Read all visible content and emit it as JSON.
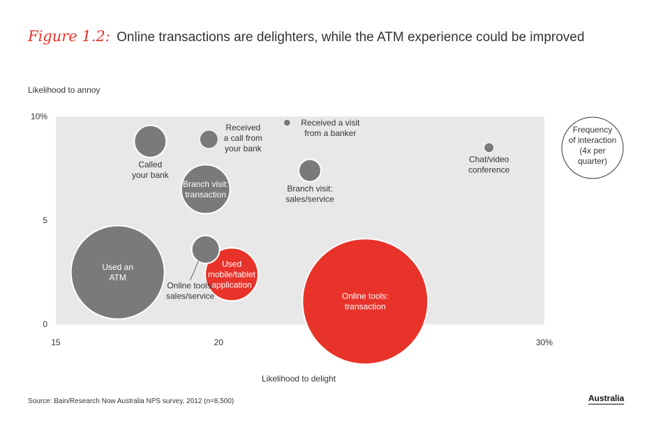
{
  "header": {
    "figure_label": "Figure 1.2:",
    "title": "Online transactions are delighters, while the ATM experience could be improved"
  },
  "source": "Source: Bain/Research Now Australia NPS survey, 2012 (n=8,500)",
  "region": "Australia",
  "chart_data": {
    "type": "bubble",
    "title": "Online transactions are delighters, while the ATM experience could be improved",
    "xlabel": "Likelihood to delight",
    "ylabel": "Likelihood to annoy",
    "xlim": [
      15,
      30
    ],
    "ylim": [
      0,
      10
    ],
    "x_ticks": [
      {
        "value": 15,
        "label": "15"
      },
      {
        "value": 20,
        "label": "20"
      },
      {
        "value": 30,
        "label": "30%"
      }
    ],
    "y_ticks": [
      {
        "value": 0,
        "label": "0"
      },
      {
        "value": 5,
        "label": "5"
      },
      {
        "value": 10,
        "label": "10%"
      }
    ],
    "size_legend": [
      "Frequency",
      "of interaction",
      "(4x per",
      "quarter)"
    ],
    "colors": {
      "grey": "#7a7a7a",
      "red": "#e8332a",
      "plot_bg": "#e8e8e8"
    },
    "points": [
      {
        "name": "Used an ATM",
        "label": [
          "Used an",
          "ATM"
        ],
        "x": 16.9,
        "y": 2.5,
        "r": 67,
        "color": "grey",
        "label_pos": "inside"
      },
      {
        "name": "Called your bank",
        "label": [
          "Called",
          "your bank"
        ],
        "x": 17.9,
        "y": 8.8,
        "r": 23,
        "color": "grey",
        "label_pos": "below"
      },
      {
        "name": "Received a call from your bank",
        "label": [
          "Received",
          "a call from",
          "your bank"
        ],
        "x": 19.7,
        "y": 8.9,
        "r": 13,
        "color": "grey",
        "label_pos": "right"
      },
      {
        "name": "Branch visit: transaction",
        "label": [
          "Branch visit:",
          "transaction"
        ],
        "x": 19.6,
        "y": 6.5,
        "r": 35,
        "color": "grey",
        "label_pos": "inside"
      },
      {
        "name": "Online tools: sales/service",
        "label": [
          "Online tools:",
          "sales/service"
        ],
        "x": 19.6,
        "y": 3.6,
        "r": 20,
        "color": "grey",
        "label_pos": "belowleft"
      },
      {
        "name": "Used mobile/tablet application",
        "label": [
          "Used",
          "mobile/tablet",
          "application"
        ],
        "x": 20.4,
        "y": 2.4,
        "r": 38,
        "color": "red",
        "label_pos": "inside"
      },
      {
        "name": "Received a visit from a banker",
        "label": [
          "Received a visit",
          "from a banker"
        ],
        "x": 22.1,
        "y": 9.7,
        "r": 5,
        "color": "grey",
        "label_pos": "right"
      },
      {
        "name": "Branch visit: sales/service",
        "label": [
          "Branch visit:",
          "sales/service"
        ],
        "x": 22.8,
        "y": 7.4,
        "r": 16,
        "color": "grey",
        "label_pos": "below"
      },
      {
        "name": "Online tools: transaction",
        "label": [
          "Online tools:",
          "transaction"
        ],
        "x": 24.5,
        "y": 1.1,
        "r": 90,
        "color": "red",
        "label_pos": "inside"
      },
      {
        "name": "Chat/video conference",
        "label": [
          "Chat/video",
          "conference"
        ],
        "x": 28.3,
        "y": 8.5,
        "r": 7,
        "color": "grey",
        "label_pos": "below"
      }
    ]
  }
}
